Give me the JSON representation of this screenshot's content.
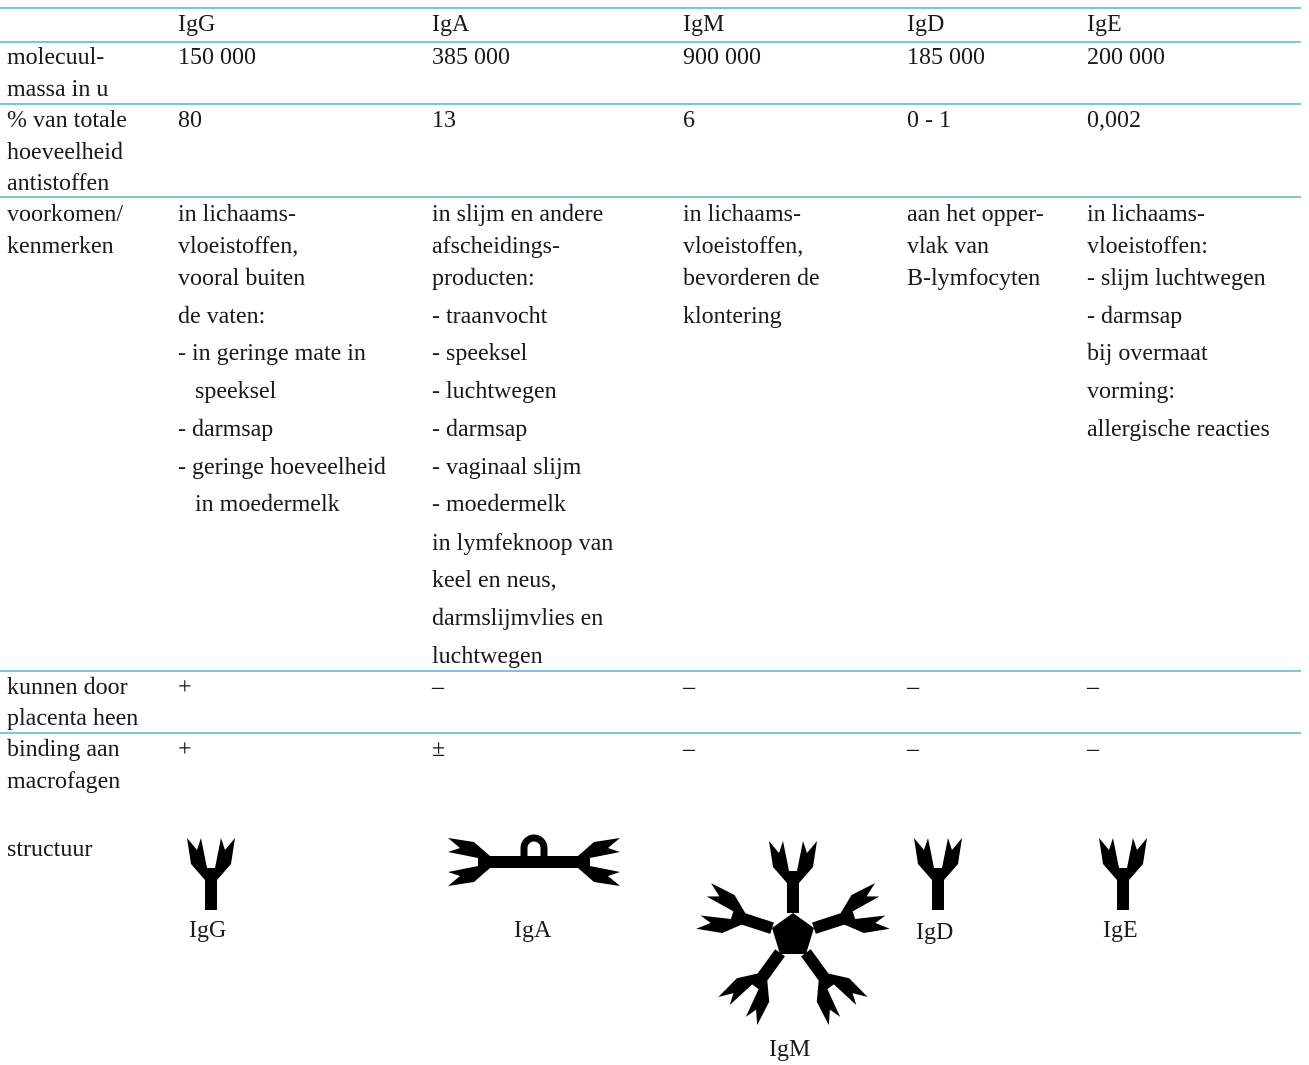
{
  "table": {
    "columns": [
      "IgG",
      "IgA",
      "IgM",
      "IgD",
      "IgE"
    ],
    "rows": [
      {
        "label": [
          "molecuul-",
          "massa in u"
        ],
        "cells": [
          [
            "150 000"
          ],
          [
            "385 000"
          ],
          [
            "900 000"
          ],
          [
            "185 000"
          ],
          [
            "200 000"
          ]
        ]
      },
      {
        "label": [
          "% van totale",
          "hoeveelheid",
          "antistoffen"
        ],
        "cells": [
          [
            "80"
          ],
          [
            "13"
          ],
          [
            "6"
          ],
          [
            "0 - 1"
          ],
          [
            "0,002"
          ]
        ]
      },
      {
        "label": [
          "voorkomen/",
          "kenmerken"
        ],
        "cells": [
          [
            "in lichaams-",
            "vloeistoffen,",
            "vooral buiten",
            "de vaten:",
            "- in geringe mate in",
            "speeksel",
            "- darmsap",
            "- geringe hoeveelheid",
            "in moedermelk"
          ],
          [
            "in slijm en andere",
            "afscheidings-",
            "producten:",
            "- traanvocht",
            "- speeksel",
            "- luchtwegen",
            "- darmsap",
            "- vaginaal slijm",
            "- moedermelk",
            "in lymfeknoop van",
            "keel en neus,",
            "darmslijmvlies en",
            "luchtwegen"
          ],
          [
            "in lichaams-",
            "vloeistoffen,",
            "bevorderen de",
            "klontering"
          ],
          [
            "aan het opper-",
            "vlak van",
            "B-lymfocyten"
          ],
          [
            "in lichaams-",
            "vloeistoffen:",
            "- slijm luchtwegen",
            "- darmsap",
            "bij overmaat",
            "vorming:",
            "allergische reacties"
          ]
        ]
      },
      {
        "label": [
          "kunnen door",
          "placenta heen"
        ],
        "cells": [
          [
            "+"
          ],
          [
            "–"
          ],
          [
            "–"
          ],
          [
            "–"
          ],
          [
            "–"
          ]
        ]
      },
      {
        "label": [
          "binding aan",
          "macrofagen"
        ],
        "cells": [
          [
            "+"
          ],
          [
            "±"
          ],
          [
            "–"
          ],
          [
            "–"
          ],
          [
            "–"
          ]
        ]
      }
    ],
    "structure": {
      "label": "structuur",
      "captions": [
        "IgG",
        "IgA",
        "IgM",
        "IgD",
        "IgE"
      ]
    }
  }
}
